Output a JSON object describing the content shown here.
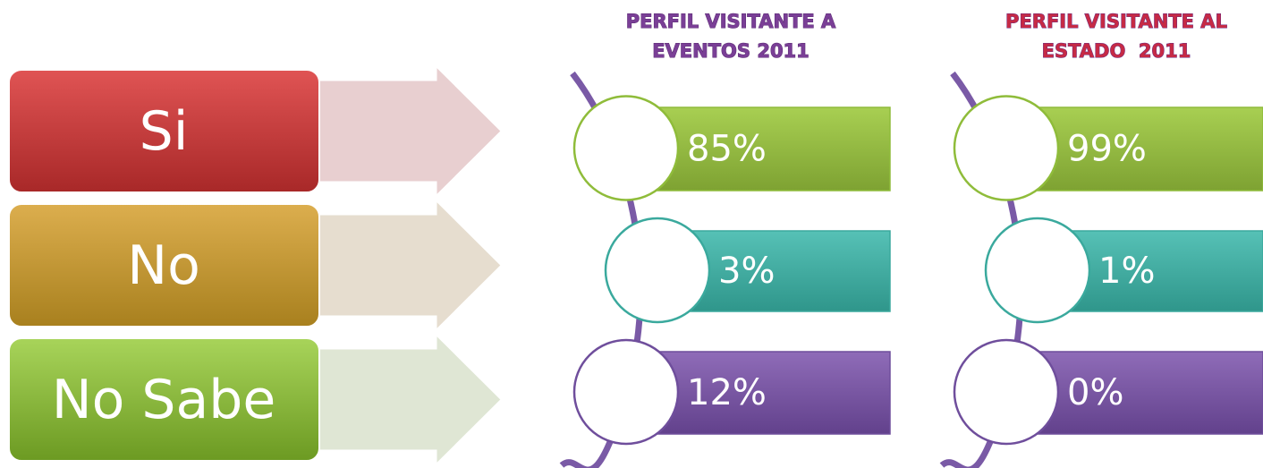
{
  "legend": {
    "items": [
      "Si",
      "No",
      "No Sabe"
    ]
  },
  "columns": [
    {
      "title": [
        "PERFIL VISITANTE A",
        "EVENTOS 2011"
      ],
      "values": [
        "85%",
        "3%",
        "12%"
      ]
    },
    {
      "title": [
        "PERFIL VISITANTE AL",
        "ESTADO  2011"
      ],
      "values": [
        "99%",
        "1%",
        "0%"
      ]
    }
  ]
}
